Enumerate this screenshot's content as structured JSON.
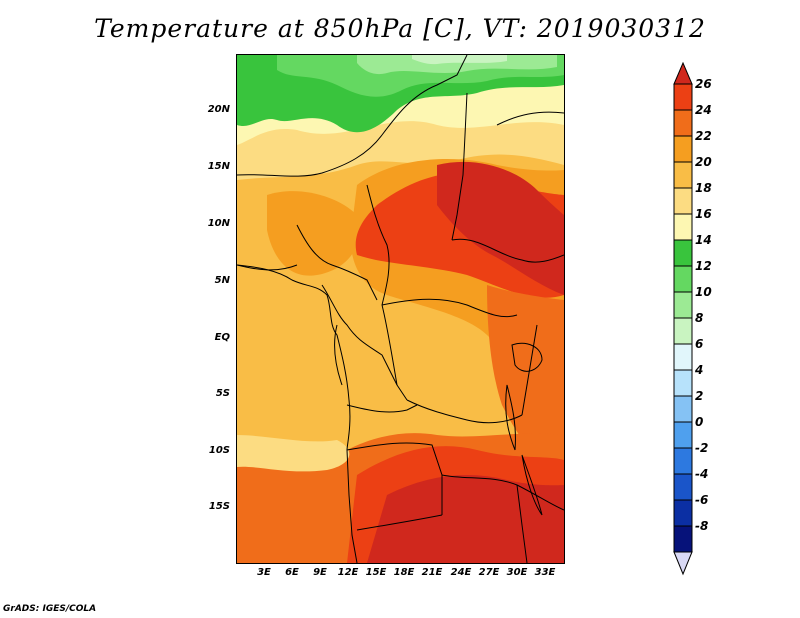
{
  "title": "Temperature at 850hPa [C], VT: 2019030312",
  "footer": "GrADS: IGES/COLA",
  "map": {
    "lat_labels": [
      "20N",
      "15N",
      "10N",
      "5N",
      "EQ",
      "5S",
      "10S",
      "15S"
    ],
    "lon_labels": [
      "3E",
      "6E",
      "9E",
      "12E",
      "15E",
      "18E",
      "21E",
      "24E",
      "27E",
      "30E",
      "33E"
    ]
  },
  "colorbar": {
    "levels": [
      "26",
      "24",
      "22",
      "20",
      "18",
      "16",
      "14",
      "12",
      "10",
      "8",
      "6",
      "4",
      "2",
      "0",
      "-2",
      "-4",
      "-6",
      "-8"
    ],
    "colors": [
      "#d0281d",
      "#ec4014",
      "#f06d1a",
      "#f59e20",
      "#f9bd46",
      "#fcdc82",
      "#fdf7b2",
      "#39c43d",
      "#64d861",
      "#9cea94",
      "#c9f4c1",
      "#e1f6fb",
      "#b7e2fb",
      "#85c2f4",
      "#4fa0ee",
      "#2d79e0",
      "#1a55c9",
      "#0b2fa3",
      "#06127a",
      "#d9d9f5"
    ]
  }
}
